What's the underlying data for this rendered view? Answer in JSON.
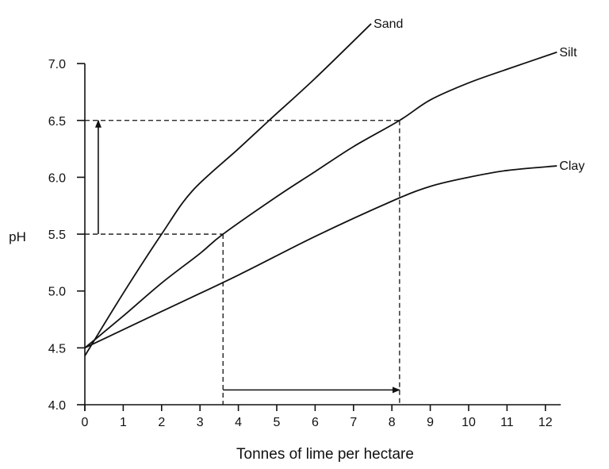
{
  "chart_data": {
    "type": "line",
    "title": "",
    "xlabel": "Tonnes of lime per hectare",
    "ylabel": "pH",
    "xlim": [
      0,
      12.4
    ],
    "ylim": [
      4.0,
      7.0
    ],
    "xticks": [
      "0",
      "1",
      "2",
      "3",
      "4",
      "5",
      "6",
      "7",
      "8",
      "9",
      "10",
      "11",
      "12"
    ],
    "yticks": [
      "4.0",
      "4.5",
      "5.0",
      "5.5",
      "6.0",
      "6.5",
      "7.0"
    ],
    "grid": false,
    "legend": "none (series labelled at line ends)",
    "line_color": "#111111",
    "series": [
      {
        "name": "Sand",
        "x": [
          0,
          1,
          2,
          2.8,
          4,
          4.8,
          6,
          7.46
        ],
        "y": [
          4.43,
          4.98,
          5.5,
          5.88,
          6.25,
          6.5,
          6.87,
          7.35
        ]
      },
      {
        "name": "Silt",
        "x": [
          0,
          1,
          2,
          3,
          3.6,
          5,
          6,
          7,
          8.2,
          9,
          10,
          11,
          12.3
        ],
        "y": [
          4.5,
          4.78,
          5.07,
          5.33,
          5.5,
          5.83,
          6.05,
          6.27,
          6.5,
          6.68,
          6.83,
          6.95,
          7.1
        ]
      },
      {
        "name": "Clay",
        "x": [
          0,
          2,
          4,
          6,
          8,
          9,
          10,
          11,
          12.3
        ],
        "y": [
          4.5,
          4.82,
          5.14,
          5.48,
          5.79,
          5.92,
          6.0,
          6.06,
          6.1
        ]
      }
    ],
    "annotations": {
      "dashed_lines": [
        {
          "from": [
            0,
            6.5
          ],
          "to": [
            8.2,
            6.5
          ]
        },
        {
          "from": [
            8.2,
            6.5
          ],
          "to": [
            8.2,
            4.0
          ]
        },
        {
          "from": [
            0,
            5.5
          ],
          "to": [
            3.6,
            5.5
          ]
        },
        {
          "from": [
            3.6,
            5.5
          ],
          "to": [
            3.6,
            4.0
          ]
        }
      ],
      "arrows": [
        {
          "from": [
            0.35,
            5.5
          ],
          "to": [
            0.35,
            6.5
          ]
        },
        {
          "from": [
            3.6,
            4.13
          ],
          "to": [
            8.2,
            4.13
          ]
        }
      ]
    }
  }
}
